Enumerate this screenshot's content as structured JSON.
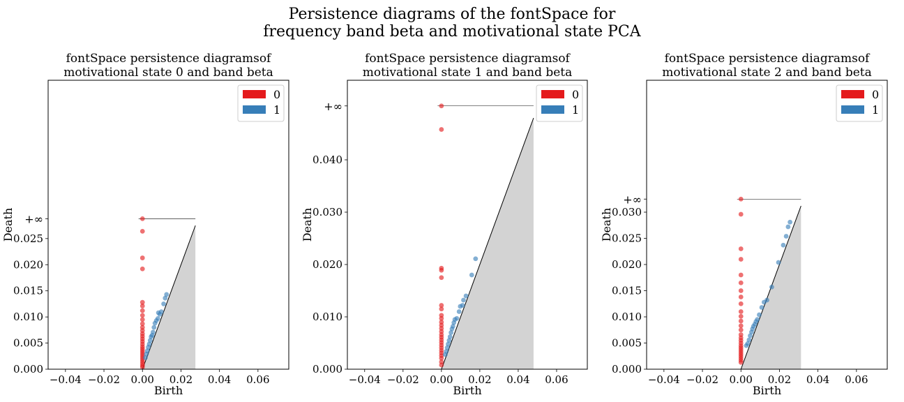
{
  "suptitle": {
    "line1": "Persistence diagrams of the fontSpace for",
    "line2": "frequency band beta and motivational state PCA"
  },
  "colors": {
    "h0": "#e41a1c",
    "h1": "#377eb8",
    "shade": "#d3d3d3"
  },
  "chart_data": [
    {
      "type": "scatter",
      "title": [
        "fontSpace persistence diagramsof",
        "motivational state 0 and band beta"
      ],
      "xlabel": "Birth",
      "ylabel": "Death",
      "xlim": [
        -0.049,
        0.076
      ],
      "ylim": [
        0.0,
        0.0553
      ],
      "xticks": [
        "−0.04",
        "−0.02",
        "0.00",
        "0.02",
        "0.04",
        "0.06"
      ],
      "xtick_values": [
        -0.04,
        -0.02,
        0.0,
        0.02,
        0.04,
        0.06
      ],
      "yticks": [
        "0.000",
        "0.005",
        "0.010",
        "0.015",
        "0.020",
        "0.025"
      ],
      "ytick_values": [
        0.0,
        0.005,
        0.01,
        0.015,
        0.02,
        0.025
      ],
      "inf_label": "+∞",
      "inf_value": 0.0288,
      "diag_max": 0.0275,
      "legend": [
        "0",
        "1"
      ],
      "legend_loc": "upper right",
      "series": [
        {
          "name": "0",
          "color": "#e41a1c",
          "points": [
            [
              0,
              0.0288
            ],
            [
              0,
              0.0264
            ],
            [
              0,
              0.0213
            ],
            [
              0,
              0.0192
            ],
            [
              0,
              0.0128
            ],
            [
              0,
              0.0121
            ],
            [
              0,
              0.0112
            ],
            [
              0,
              0.0103
            ],
            [
              0,
              0.0095
            ],
            [
              0,
              0.0087
            ],
            [
              0,
              0.008
            ],
            [
              0,
              0.0074
            ],
            [
              0,
              0.0068
            ],
            [
              0,
              0.0063
            ],
            [
              0,
              0.0058
            ],
            [
              0,
              0.0053
            ],
            [
              0,
              0.0048
            ],
            [
              0,
              0.0043
            ],
            [
              0,
              0.0039
            ],
            [
              0,
              0.0035
            ],
            [
              0,
              0.0031
            ],
            [
              0,
              0.0027
            ],
            [
              0,
              0.0023
            ],
            [
              0,
              0.0019
            ],
            [
              0,
              0.0015
            ],
            [
              0,
              0.0011
            ],
            [
              0,
              0.0007
            ],
            [
              0,
              0.0004
            ]
          ]
        },
        {
          "name": "1",
          "color": "#377eb8",
          "points": [
            [
              0.0125,
              0.0143
            ],
            [
              0.0118,
              0.0136
            ],
            [
              0.011,
              0.0125
            ],
            [
              0.0098,
              0.011
            ],
            [
              0.009,
              0.0105
            ],
            [
              0.0083,
              0.0108
            ],
            [
              0.008,
              0.0097
            ],
            [
              0.0072,
              0.0093
            ],
            [
              0.0065,
              0.0088
            ],
            [
              0.006,
              0.008
            ],
            [
              0.0055,
              0.0071
            ],
            [
              0.005,
              0.0065
            ],
            [
              0.0045,
              0.0062
            ],
            [
              0.004,
              0.0055
            ],
            [
              0.0035,
              0.0048
            ],
            [
              0.003,
              0.0042
            ],
            [
              0.0025,
              0.0035
            ],
            [
              0.002,
              0.0029
            ],
            [
              0.0015,
              0.0022
            ]
          ]
        }
      ]
    },
    {
      "type": "scatter",
      "title": [
        "fontSpace persistence diagramsof",
        "motivational state 1 and band beta"
      ],
      "xlabel": "Birth",
      "ylabel": "Death",
      "xlim": [
        -0.049,
        0.076
      ],
      "ylim": [
        0.0,
        0.0552
      ],
      "xticks": [
        "−0.04",
        "−0.02",
        "0.00",
        "0.02",
        "0.04",
        "0.06"
      ],
      "xtick_values": [
        -0.04,
        -0.02,
        0.0,
        0.02,
        0.04,
        0.06
      ],
      "yticks": [
        "0.000",
        "0.010",
        "0.020",
        "0.030",
        "0.040"
      ],
      "ytick_values": [
        0.0,
        0.01,
        0.02,
        0.03,
        0.04
      ],
      "inf_label": "+∞",
      "inf_value": 0.0503,
      "diag_max": 0.048,
      "legend": [
        "0",
        "1"
      ],
      "legend_loc": "upper right",
      "series": [
        {
          "name": "0",
          "color": "#e41a1c",
          "points": [
            [
              0,
              0.0503
            ],
            [
              0,
              0.0458
            ],
            [
              0,
              0.0193
            ],
            [
              0,
              0.0189
            ],
            [
              0,
              0.0175
            ],
            [
              0,
              0.0122
            ],
            [
              0,
              0.0115
            ],
            [
              0,
              0.0103
            ],
            [
              0,
              0.0097
            ],
            [
              0,
              0.009
            ],
            [
              0,
              0.0084
            ],
            [
              0,
              0.0078
            ],
            [
              0,
              0.0072
            ],
            [
              0,
              0.0066
            ],
            [
              0,
              0.0061
            ],
            [
              0,
              0.0056
            ],
            [
              0,
              0.0051
            ],
            [
              0,
              0.0046
            ],
            [
              0,
              0.0041
            ],
            [
              0,
              0.0036
            ],
            [
              0,
              0.0031
            ],
            [
              0,
              0.0026
            ],
            [
              0,
              0.0021
            ],
            [
              0,
              0.0014
            ],
            [
              0,
              0.0008
            ]
          ]
        },
        {
          "name": "1",
          "color": "#377eb8",
          "points": [
            [
              0.0178,
              0.0211
            ],
            [
              0.0158,
              0.018
            ],
            [
              0.0128,
              0.014
            ],
            [
              0.0115,
              0.0132
            ],
            [
              0.011,
              0.0122
            ],
            [
              0.0098,
              0.012
            ],
            [
              0.0092,
              0.011
            ],
            [
              0.008,
              0.0097
            ],
            [
              0.007,
              0.0095
            ],
            [
              0.0065,
              0.0089
            ],
            [
              0.006,
              0.0082
            ],
            [
              0.0055,
              0.0077
            ],
            [
              0.005,
              0.007
            ],
            [
              0.0045,
              0.0062
            ],
            [
              0.004,
              0.0055
            ],
            [
              0.0035,
              0.0048
            ],
            [
              0.003,
              0.0041
            ],
            [
              0.0025,
              0.0034
            ],
            [
              0.002,
              0.0028
            ]
          ]
        }
      ]
    },
    {
      "type": "scatter",
      "title": [
        "fontSpace persistence diagramsof",
        "motivational state 2 and band beta"
      ],
      "xlabel": "Birth",
      "ylabel": "Death",
      "xlim": [
        -0.049,
        0.076
      ],
      "ylim": [
        0.0,
        0.0552
      ],
      "xticks": [
        "−0.04",
        "−0.02",
        "0.00",
        "0.02",
        "0.04",
        "0.06"
      ],
      "xtick_values": [
        -0.04,
        -0.02,
        0.0,
        0.02,
        0.04,
        0.06
      ],
      "yticks": [
        "0.000",
        "0.005",
        "0.010",
        "0.015",
        "0.020",
        "0.025",
        "0.030"
      ],
      "ytick_values": [
        0.0,
        0.005,
        0.01,
        0.015,
        0.02,
        0.025,
        0.03
      ],
      "inf_label": "+∞",
      "inf_value": 0.0325,
      "diag_max": 0.0312,
      "legend": [
        "0",
        "1"
      ],
      "legend_loc": "upper right",
      "series": [
        {
          "name": "0",
          "color": "#e41a1c",
          "points": [
            [
              0,
              0.0325
            ],
            [
              0,
              0.0296
            ],
            [
              0,
              0.023
            ],
            [
              0,
              0.021
            ],
            [
              0,
              0.018
            ],
            [
              0,
              0.0165
            ],
            [
              0,
              0.015
            ],
            [
              0,
              0.0138
            ],
            [
              0,
              0.0125
            ],
            [
              0,
              0.011
            ],
            [
              0,
              0.0101
            ],
            [
              0,
              0.0092
            ],
            [
              0,
              0.0083
            ],
            [
              0,
              0.0075
            ],
            [
              0,
              0.0066
            ],
            [
              0,
              0.006
            ],
            [
              0,
              0.0055
            ],
            [
              0,
              0.005
            ],
            [
              0,
              0.0045
            ],
            [
              0,
              0.0041
            ],
            [
              0,
              0.0037
            ],
            [
              0,
              0.0033
            ],
            [
              0,
              0.0029
            ],
            [
              0,
              0.0025
            ],
            [
              0,
              0.0021
            ],
            [
              0,
              0.0017
            ],
            [
              0,
              0.0013
            ]
          ]
        },
        {
          "name": "1",
          "color": "#377eb8",
          "points": [
            [
              0.0255,
              0.0281
            ],
            [
              0.0245,
              0.0272
            ],
            [
              0.0235,
              0.0254
            ],
            [
              0.022,
              0.0237
            ],
            [
              0.0195,
              0.0204
            ],
            [
              0.016,
              0.0157
            ],
            [
              0.0135,
              0.0132
            ],
            [
              0.012,
              0.0128
            ],
            [
              0.0108,
              0.0118
            ],
            [
              0.0095,
              0.0104
            ],
            [
              0.0085,
              0.0095
            ],
            [
              0.0078,
              0.0091
            ],
            [
              0.0072,
              0.0086
            ],
            [
              0.0065,
              0.0082
            ],
            [
              0.006,
              0.0077
            ],
            [
              0.0055,
              0.0071
            ],
            [
              0.0048,
              0.0064
            ],
            [
              0.0042,
              0.0056
            ],
            [
              0.0035,
              0.0049
            ],
            [
              0.0028,
              0.0045
            ]
          ]
        }
      ]
    }
  ]
}
